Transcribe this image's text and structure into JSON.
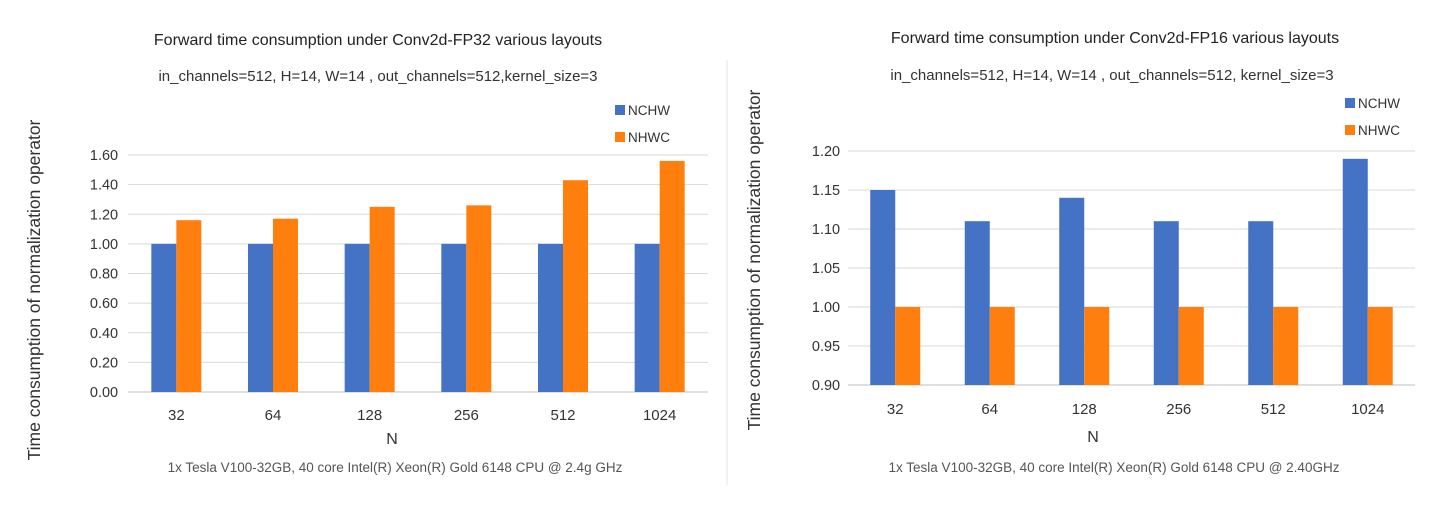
{
  "chart_data": [
    {
      "type": "bar",
      "title": "Forward time consumption under Conv2d-FP32 various layouts",
      "subtitle": "in_channels=512, H=14, W=14 , out_channels=512,kernel_size=3",
      "xlabel": "N",
      "ylabel": "Time consumption of normalization operator",
      "footnote": "1x Tesla V100-32GB, 40 core Intel(R) Xeon(R) Gold 6148 CPU @ 2.4g GHz",
      "categories": [
        "32",
        "64",
        "128",
        "256",
        "512",
        "1024"
      ],
      "series": [
        {
          "name": "NCHW",
          "color": "#4472c4",
          "values": [
            1.0,
            1.0,
            1.0,
            1.0,
            1.0,
            1.0
          ]
        },
        {
          "name": "NHWC",
          "color": "#ff7f0e",
          "values": [
            1.16,
            1.17,
            1.25,
            1.26,
            1.43,
            1.56
          ]
        }
      ],
      "ylim": [
        0,
        1.6
      ],
      "yticks": [
        "0.00",
        "0.20",
        "0.40",
        "0.60",
        "0.80",
        "1.00",
        "1.20",
        "1.40",
        "1.60"
      ],
      "legend": "top-right"
    },
    {
      "type": "bar",
      "title": "Forward time consumption under Conv2d-FP16 various layouts",
      "subtitle": "in_channels=512, H=14, W=14 , out_channels=512, kernel_size=3",
      "xlabel": "N",
      "ylabel": "Time consumption of normalization operator",
      "footnote": "1x Tesla V100-32GB, 40 core Intel(R) Xeon(R) Gold 6148 CPU @ 2.40GHz",
      "categories": [
        "32",
        "64",
        "128",
        "256",
        "512",
        "1024"
      ],
      "series": [
        {
          "name": "NCHW",
          "color": "#4472c4",
          "values": [
            1.15,
            1.11,
            1.14,
            1.11,
            1.11,
            1.19
          ]
        },
        {
          "name": "NHWC",
          "color": "#ff7f0e",
          "values": [
            1.0,
            1.0,
            1.0,
            1.0,
            1.0,
            1.0
          ]
        }
      ],
      "ylim": [
        0.9,
        1.2
      ],
      "yticks": [
        "0.90",
        "0.95",
        "1.00",
        "1.05",
        "1.10",
        "1.15",
        "1.20"
      ],
      "legend": "top-right"
    }
  ]
}
